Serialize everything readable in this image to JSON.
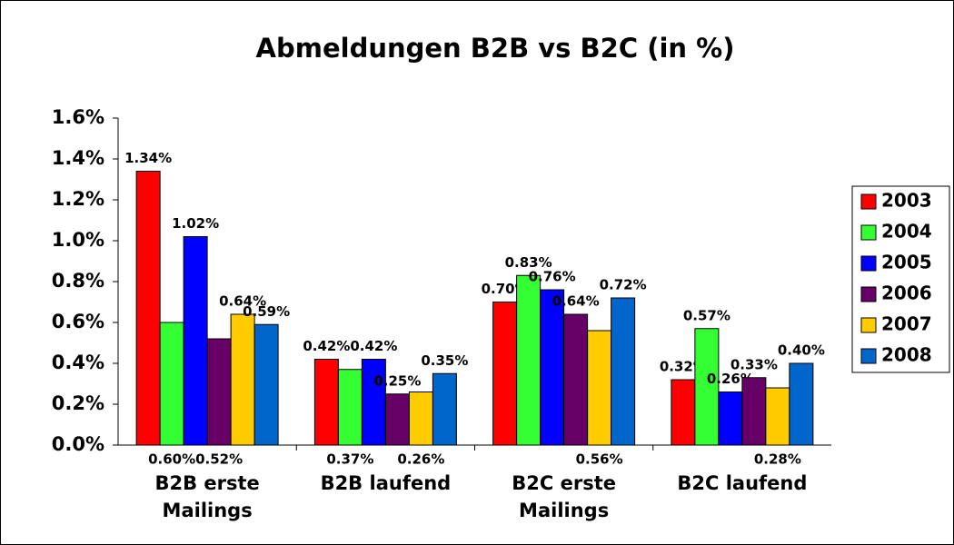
{
  "chart_data": {
    "type": "bar",
    "title": "Abmeldungen B2B vs B2C (in %)",
    "categories": [
      "B2B erste Mailings",
      "B2B laufend",
      "B2C erste Mailings",
      "B2C laufend"
    ],
    "series": [
      {
        "name": "2003",
        "color": "#ff0000",
        "values": [
          1.34,
          0.42,
          0.7,
          0.32
        ],
        "value_labels": [
          "1.34%",
          "0.42%",
          "0.70%",
          "0.32%"
        ]
      },
      {
        "name": "2004",
        "color": "#33ff33",
        "values": [
          0.6,
          0.37,
          0.83,
          0.57
        ],
        "value_labels": [
          "0.60%",
          "0.37%",
          "0.83%",
          "0.57%"
        ]
      },
      {
        "name": "2005",
        "color": "#0000ff",
        "values": [
          1.02,
          0.42,
          0.76,
          0.26
        ],
        "value_labels": [
          "1.02%",
          "0.42%",
          "0.76%",
          "0.26%"
        ]
      },
      {
        "name": "2006",
        "color": "#660066",
        "values": [
          0.52,
          0.25,
          0.64,
          0.33
        ],
        "value_labels": [
          "0.52%",
          "0.25%",
          "0.64%",
          "0.33%"
        ]
      },
      {
        "name": "2007",
        "color": "#ffcc00",
        "values": [
          0.64,
          0.26,
          0.56,
          0.28
        ],
        "value_labels": [
          "0.64%",
          "0.26%",
          "0.56%",
          "0.28%"
        ]
      },
      {
        "name": "2008",
        "color": "#0066cc",
        "values": [
          0.59,
          0.35,
          0.72,
          0.4
        ],
        "value_labels": [
          "0.59%",
          "0.35%",
          "0.72%",
          "0.40%"
        ]
      }
    ],
    "ylim": [
      0,
      1.6
    ],
    "yticks": [
      {
        "value": 0,
        "label": "0.0%"
      },
      {
        "value": 0.2,
        "label": "0.2%"
      },
      {
        "value": 0.4,
        "label": "0.4%"
      },
      {
        "value": 0.6,
        "label": "0.6%"
      },
      {
        "value": 0.8,
        "label": "0.8%"
      },
      {
        "value": 1.0,
        "label": "1.0%"
      },
      {
        "value": 1.2,
        "label": "1.2%"
      },
      {
        "value": 1.4,
        "label": "1.4%"
      },
      {
        "value": 1.6,
        "label": "1.6%"
      }
    ],
    "legend": "right"
  }
}
